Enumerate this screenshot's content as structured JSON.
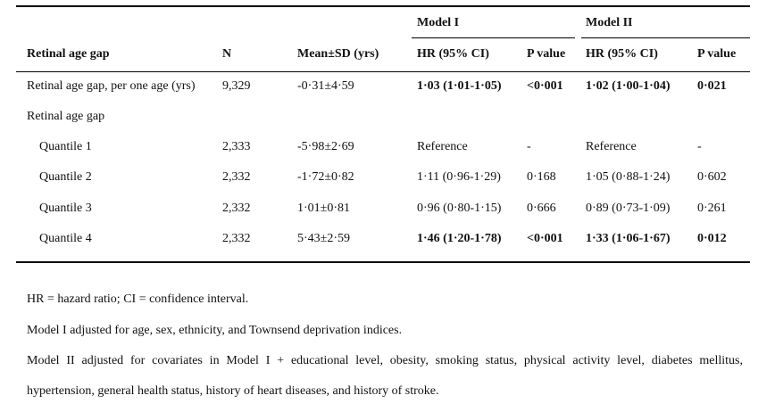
{
  "header": {
    "model1": "Model I",
    "model2": "Model II",
    "col_gap": "Retinal age gap",
    "col_n": "N",
    "col_mean": "Mean±SD (yrs)",
    "col_hr1": "HR (95% CI)",
    "col_p1": "P value",
    "col_hr2": "HR (95% CI)",
    "col_p2": "P value"
  },
  "rows": [
    {
      "label": "Retinal age gap, per one age (yrs)",
      "n": "9,329",
      "mean": "-0·31±4·59",
      "hr1": "1·03 (1·01-1·05)",
      "p1": "<0·001",
      "hr2": "1·02 (1·00-1·04)",
      "p2": "0·021",
      "bold_results": true
    },
    {
      "label": "Retinal age gap",
      "n": "",
      "mean": "",
      "hr1": "",
      "p1": "",
      "hr2": "",
      "p2": "",
      "bold_results": false
    },
    {
      "label": "Quantile 1",
      "n": "2,333",
      "mean": "-5·98±2·69",
      "hr1": "Reference",
      "p1": "-",
      "hr2": "Reference",
      "p2": "-",
      "bold_results": false
    },
    {
      "label": "Quantile 2",
      "n": "2,332",
      "mean": "-1·72±0·82",
      "hr1": "1·11 (0·96-1·29)",
      "p1": "0·168",
      "hr2": "1·05 (0·88-1·24)",
      "p2": "0·602",
      "bold_results": false
    },
    {
      "label": "Quantile 3",
      "n": "2,332",
      "mean": "1·01±0·81",
      "hr1": "0·96 (0·80-1·15)",
      "p1": "0·666",
      "hr2": "0·89 (0·73-1·09)",
      "p2": "0·261",
      "bold_results": false
    },
    {
      "label": "Quantile 4",
      "n": "2,332",
      "mean": "5·43±2·59",
      "hr1": "1·46 (1·20-1·78)",
      "p1": "<0·001",
      "hr2": "1·33 (1·06-1·67)",
      "p2": "0·012",
      "bold_results": true
    }
  ],
  "notes": {
    "abbrev": "HR = hazard ratio; CI = confidence interval.",
    "model1": "Model I adjusted for age, sex, ethnicity, and Townsend deprivation indices.",
    "model2_line1": "Model II adjusted for covariates in Model I + educational level, obesity, smoking status, physical activity level, diabetes mellitus,",
    "model2_line2": "hypertension, general health status, history of heart diseases, and history of stroke."
  }
}
